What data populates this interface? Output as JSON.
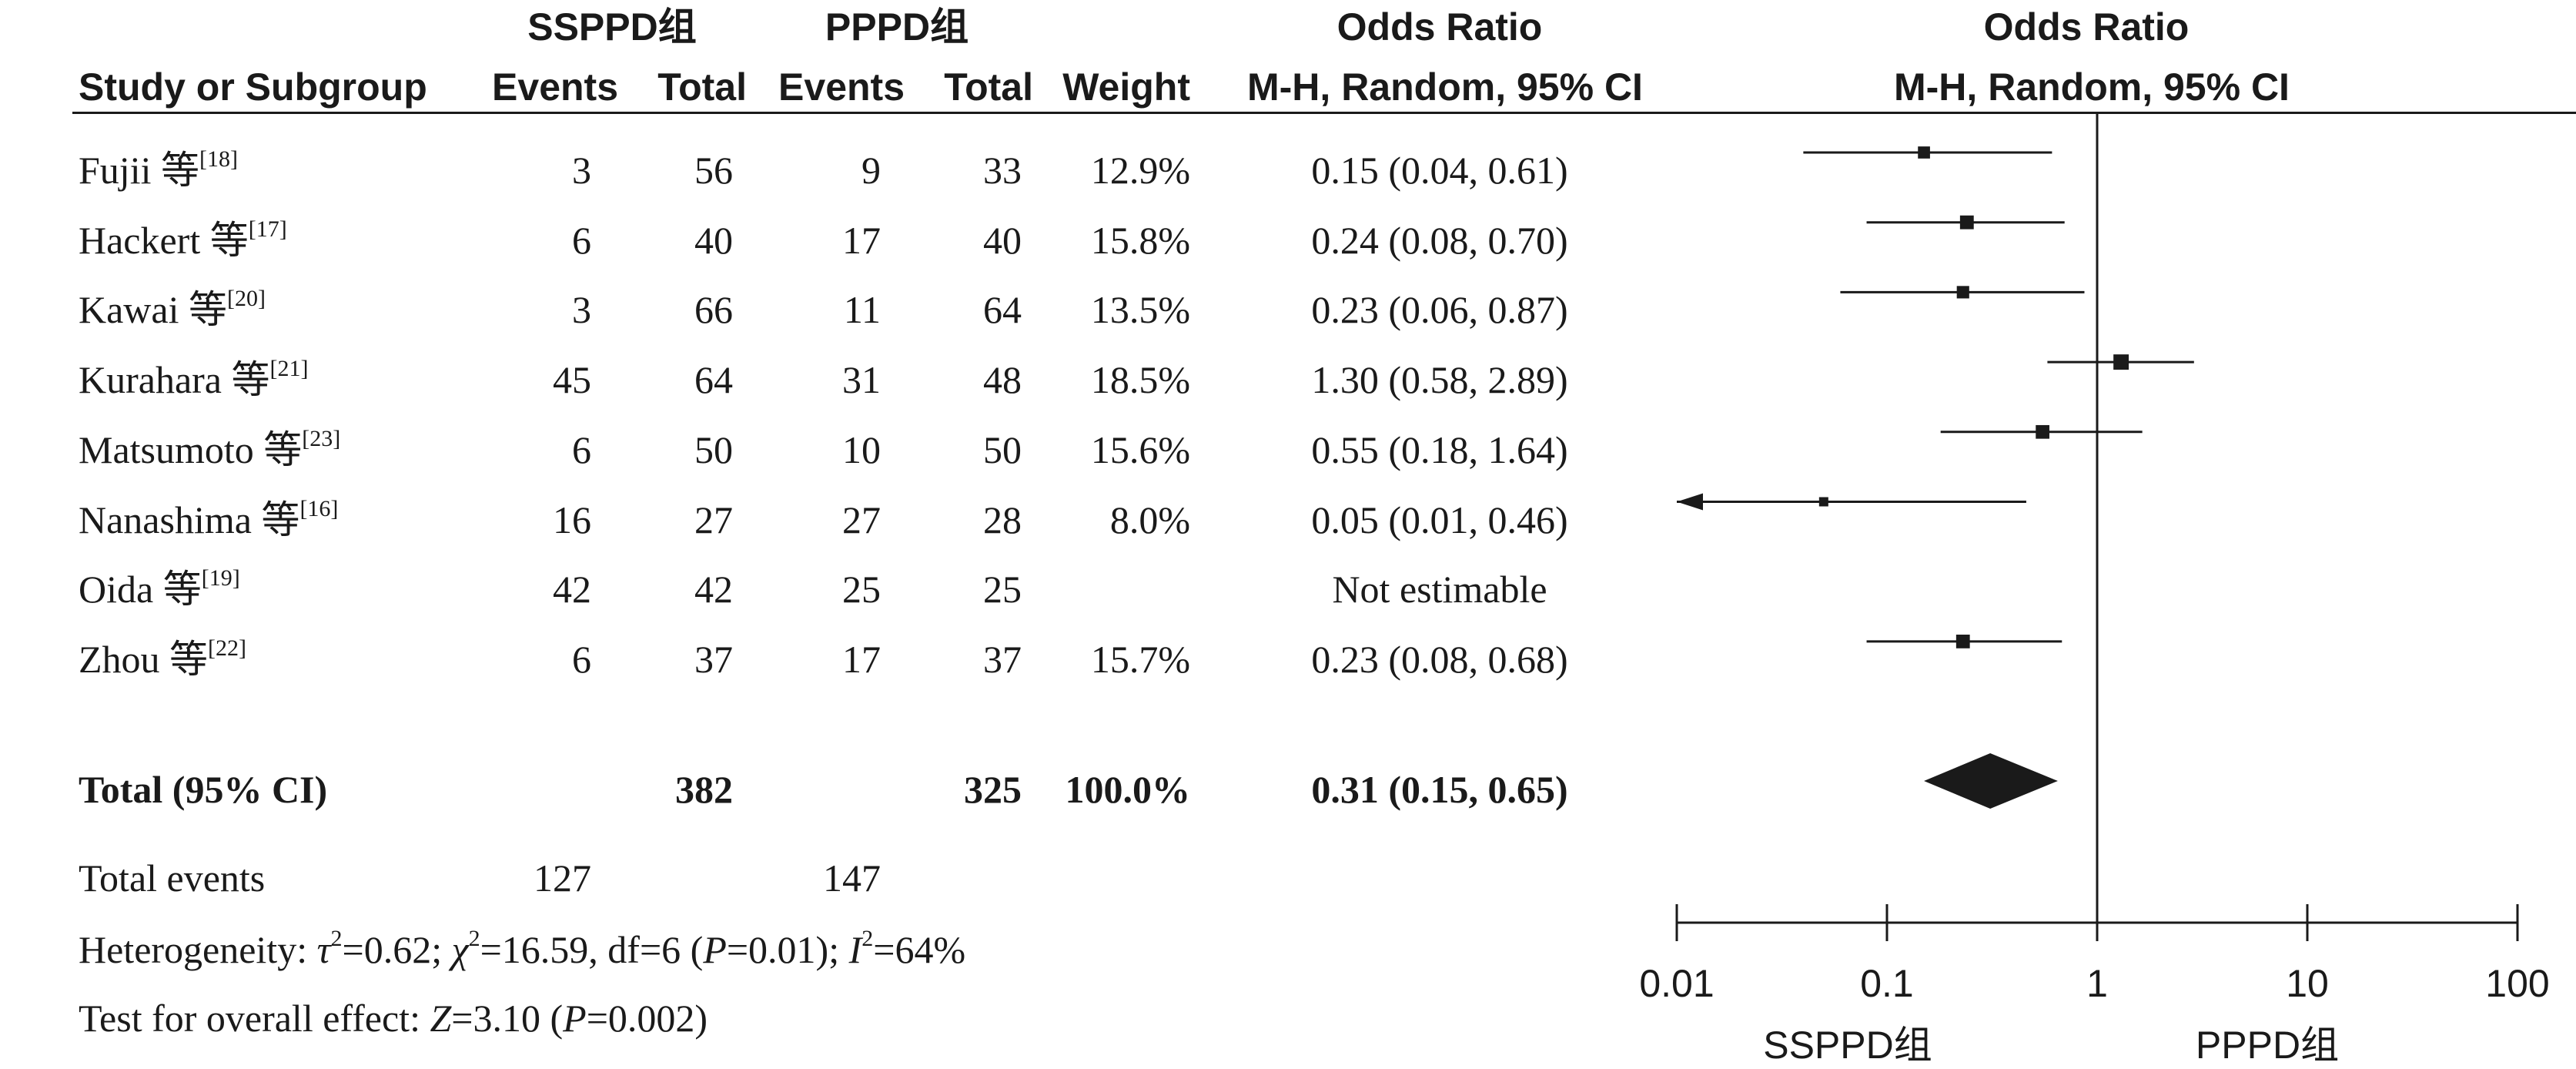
{
  "header": {
    "group1": "SSPPD组",
    "group2": "PPPD组",
    "or_title": "Odds Ratio",
    "plot_title": "Odds Ratio",
    "col_study": "Study or Subgroup",
    "col_events1": "Events",
    "col_total1": "Total",
    "col_events2": "Events",
    "col_total2": "Total",
    "col_weight": "Weight",
    "col_method": "M-H, Random, 95% CI",
    "plot_method": "M-H, Random, 95% CI"
  },
  "studies": [
    {
      "name": "Fujii 等",
      "ref": "[18]",
      "e1": "3",
      "t1": "56",
      "e2": "9",
      "t2": "33",
      "weight": "12.9%",
      "ci": "0.15 (0.04, 0.61)"
    },
    {
      "name": "Hackert 等",
      "ref": "[17]",
      "e1": "6",
      "t1": "40",
      "e2": "17",
      "t2": "40",
      "weight": "15.8%",
      "ci": "0.24 (0.08, 0.70)"
    },
    {
      "name": "Kawai 等",
      "ref": "[20]",
      "e1": "3",
      "t1": "66",
      "e2": "11",
      "t2": "64",
      "weight": "13.5%",
      "ci": "0.23 (0.06, 0.87)"
    },
    {
      "name": "Kurahara 等",
      "ref": "[21]",
      "e1": "45",
      "t1": "64",
      "e2": "31",
      "t2": "48",
      "weight": "18.5%",
      "ci": "1.30 (0.58, 2.89)"
    },
    {
      "name": "Matsumoto 等",
      "ref": "[23]",
      "e1": "6",
      "t1": "50",
      "e2": "10",
      "t2": "50",
      "weight": "15.6%",
      "ci": "0.55 (0.18, 1.64)"
    },
    {
      "name": "Nanashima 等",
      "ref": "[16]",
      "e1": "16",
      "t1": "27",
      "e2": "27",
      "t2": "28",
      "weight": "8.0%",
      "ci": "0.05 (0.01, 0.46)"
    },
    {
      "name": "Oida 等",
      "ref": "[19]",
      "e1": "42",
      "t1": "42",
      "e2": "25",
      "t2": "25",
      "weight": "",
      "ci": "Not estimable"
    },
    {
      "name": "Zhou 等",
      "ref": "[22]",
      "e1": "6",
      "t1": "37",
      "e2": "17",
      "t2": "37",
      "weight": "15.7%",
      "ci": "0.23 (0.08, 0.68)"
    }
  ],
  "total": {
    "label": "Total (95% CI)",
    "t1": "382",
    "t2": "325",
    "weight": "100.0%",
    "ci": "0.31 (0.15, 0.65)"
  },
  "events": {
    "label": "Total events",
    "e1": "127",
    "e2": "147"
  },
  "stats": {
    "heterogeneity": {
      "prefix": "Heterogeneity: ",
      "tau_sym": "τ",
      "tau_val": "=0.62; ",
      "chi_sym": "χ",
      "chi_val": "=16.59, df=6 (",
      "p_sym": "P",
      "p_val": "=0.01); ",
      "i_sym": "I",
      "i_val": "=64%",
      "sq": "2"
    },
    "overall": {
      "prefix": "Test for overall effect: ",
      "z_sym": "Z",
      "z_val": "=3.10 (",
      "p_sym": "P",
      "p_val": "=0.002)"
    }
  },
  "axis": {
    "ticks": [
      "0.01",
      "0.1",
      "1",
      "10",
      "100"
    ],
    "left_label": "SSPPD组",
    "right_label": "PPPD组"
  },
  "chart_data": {
    "type": "forest",
    "x_scale": "log",
    "xlim": [
      0.01,
      100
    ],
    "reference_line": 1,
    "points": [
      {
        "study": "Fujii",
        "or": 0.15,
        "lo": 0.04,
        "hi": 0.61,
        "weight": 12.9
      },
      {
        "study": "Hackert",
        "or": 0.24,
        "lo": 0.08,
        "hi": 0.7,
        "weight": 15.8
      },
      {
        "study": "Kawai",
        "or": 0.23,
        "lo": 0.06,
        "hi": 0.87,
        "weight": 13.5
      },
      {
        "study": "Kurahara",
        "or": 1.3,
        "lo": 0.58,
        "hi": 2.89,
        "weight": 18.5
      },
      {
        "study": "Matsumoto",
        "or": 0.55,
        "lo": 0.18,
        "hi": 1.64,
        "weight": 15.6
      },
      {
        "study": "Nanashima",
        "or": 0.05,
        "lo": 0.01,
        "hi": 0.46,
        "weight": 8.0
      },
      {
        "study": "Oida",
        "or": null,
        "lo": null,
        "hi": null,
        "weight": null
      },
      {
        "study": "Zhou",
        "or": 0.23,
        "lo": 0.08,
        "hi": 0.68,
        "weight": 15.7
      }
    ],
    "pooled": {
      "or": 0.31,
      "lo": 0.15,
      "hi": 0.65
    }
  }
}
